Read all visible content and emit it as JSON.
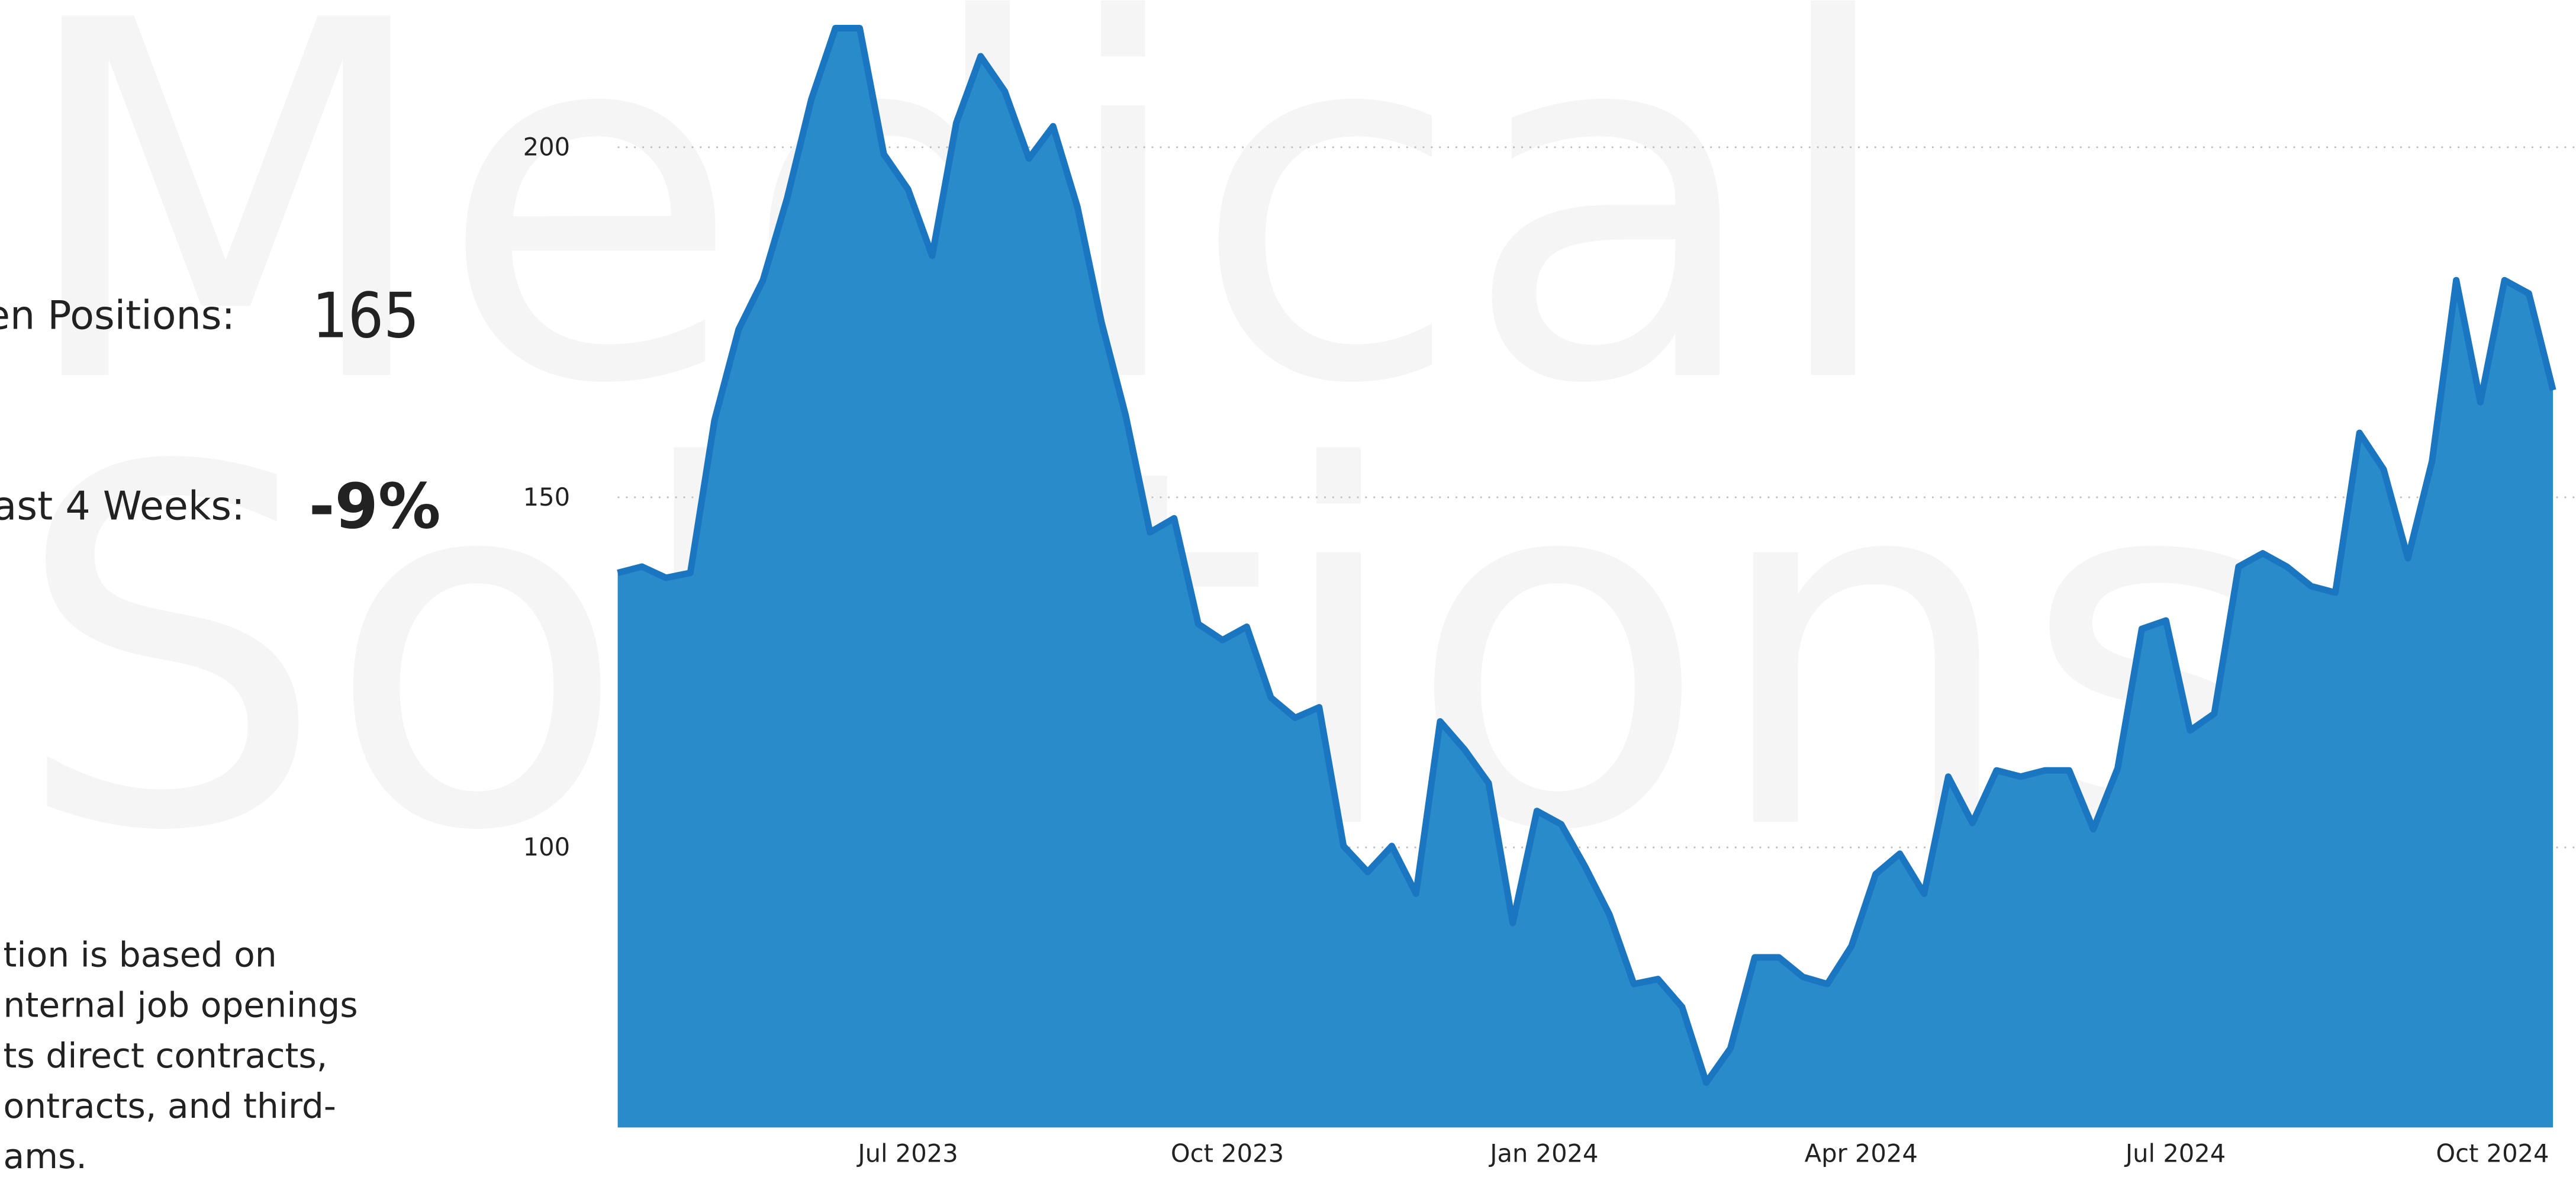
{
  "watermark": [
    "Medical",
    "Solutions"
  ],
  "kpis": [
    {
      "label": "en Positions:",
      "value": 165
    },
    {
      "label": "ast 4 Weeks:",
      "value": "-9%"
    }
  ],
  "note": [
    "tion is based on",
    "nternal job openings",
    "ts direct contracts,",
    "ontracts, and third-",
    "ams."
  ],
  "chart_data": {
    "type": "area",
    "color": "#2a8bcb",
    "line_color": "#1a76c0",
    "values": [
      139.2,
      140.1,
      138.5,
      139.2,
      161,
      174,
      181,
      192.7,
      206.8,
      217,
      217,
      199,
      194,
      184.5,
      203.5,
      213,
      208,
      198.4,
      203,
      191.5,
      175,
      161.7,
      145,
      147,
      131.9,
      129.6,
      131.5,
      121.4,
      118.5,
      120,
      100.2,
      96.5,
      100.2,
      93.4,
      118,
      114,
      109.2,
      89.2,
      105.2,
      103.3,
      97.2,
      90.4,
      80.5,
      81.2,
      77.2,
      66.4,
      71.3,
      84.3,
      84.3,
      81.5,
      80.5,
      85.9,
      96.2,
      99.1,
      93.4,
      110.1,
      103.5,
      111,
      110.1,
      111,
      111,
      102.6,
      111.3,
      131.2,
      132.4,
      116.7,
      119.1,
      140.1,
      142,
      140.1,
      137.3,
      136.4,
      159.2,
      154,
      141.3,
      155.2,
      181,
      163.6,
      181,
      179.1,
      165.3
    ],
    "xlim": [
      0,
      80
    ],
    "xticks": [
      {
        "value": 12.0,
        "label": "Jul 2023"
      },
      {
        "value": 25.2,
        "label": "Oct 2023"
      },
      {
        "value": 38.3,
        "label": "Jan 2024"
      },
      {
        "value": 51.4,
        "label": "Apr 2024"
      },
      {
        "value": 64.4,
        "label": "Jul 2024"
      },
      {
        "value": 77.5,
        "label": "Oct 2024"
      }
    ],
    "ylim": [
      60,
      221
    ],
    "yticks": [
      100,
      150,
      200
    ],
    "grid": true
  }
}
